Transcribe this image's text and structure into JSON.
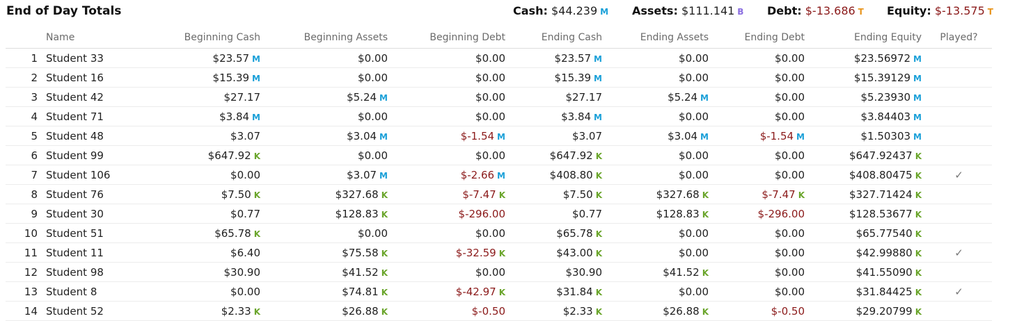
{
  "header": {
    "title": "End of Day Totals",
    "summary": [
      {
        "label": "Cash:",
        "value": "$44.239",
        "mark": "M",
        "negative": false
      },
      {
        "label": "Assets:",
        "value": "$111.141",
        "mark": "B",
        "negative": false
      },
      {
        "label": "Debt:",
        "value": "$-13.686",
        "mark": "T",
        "negative": true
      },
      {
        "label": "Equity:",
        "value": "$-13.575",
        "mark": "T",
        "negative": true
      }
    ]
  },
  "table": {
    "columns": [
      "",
      "Name",
      "Beginning Cash",
      "Beginning Assets",
      "Beginning Debt",
      "Ending Cash",
      "Ending Assets",
      "Ending Debt",
      "Ending Equity",
      "Played?"
    ],
    "check_glyph": "✓",
    "rows": [
      {
        "n": "1",
        "name": "Student 33",
        "bc": {
          "v": "$23.57",
          "m": "M"
        },
        "ba": {
          "v": "$0.00",
          "m": ""
        },
        "bd": {
          "v": "$0.00",
          "m": ""
        },
        "ec": {
          "v": "$23.57",
          "m": "M"
        },
        "ea": {
          "v": "$0.00",
          "m": ""
        },
        "ed": {
          "v": "$0.00",
          "m": ""
        },
        "eq": {
          "v": "$23.56972",
          "m": "M"
        },
        "played": false
      },
      {
        "n": "2",
        "name": "Student 16",
        "bc": {
          "v": "$15.39",
          "m": "M"
        },
        "ba": {
          "v": "$0.00",
          "m": ""
        },
        "bd": {
          "v": "$0.00",
          "m": ""
        },
        "ec": {
          "v": "$15.39",
          "m": "M"
        },
        "ea": {
          "v": "$0.00",
          "m": ""
        },
        "ed": {
          "v": "$0.00",
          "m": ""
        },
        "eq": {
          "v": "$15.39129",
          "m": "M"
        },
        "played": false
      },
      {
        "n": "3",
        "name": "Student 42",
        "bc": {
          "v": "$27.17",
          "m": ""
        },
        "ba": {
          "v": "$5.24",
          "m": "M"
        },
        "bd": {
          "v": "$0.00",
          "m": ""
        },
        "ec": {
          "v": "$27.17",
          "m": ""
        },
        "ea": {
          "v": "$5.24",
          "m": "M"
        },
        "ed": {
          "v": "$0.00",
          "m": ""
        },
        "eq": {
          "v": "$5.23930",
          "m": "M"
        },
        "played": false
      },
      {
        "n": "4",
        "name": "Student 71",
        "bc": {
          "v": "$3.84",
          "m": "M"
        },
        "ba": {
          "v": "$0.00",
          "m": ""
        },
        "bd": {
          "v": "$0.00",
          "m": ""
        },
        "ec": {
          "v": "$3.84",
          "m": "M"
        },
        "ea": {
          "v": "$0.00",
          "m": ""
        },
        "ed": {
          "v": "$0.00",
          "m": ""
        },
        "eq": {
          "v": "$3.84403",
          "m": "M"
        },
        "played": false
      },
      {
        "n": "5",
        "name": "Student 48",
        "bc": {
          "v": "$3.07",
          "m": ""
        },
        "ba": {
          "v": "$3.04",
          "m": "M"
        },
        "bd": {
          "v": "$-1.54",
          "m": "M"
        },
        "ec": {
          "v": "$3.07",
          "m": ""
        },
        "ea": {
          "v": "$3.04",
          "m": "M"
        },
        "ed": {
          "v": "$-1.54",
          "m": "M"
        },
        "eq": {
          "v": "$1.50303",
          "m": "M"
        },
        "played": false
      },
      {
        "n": "6",
        "name": "Student 99",
        "bc": {
          "v": "$647.92",
          "m": "K"
        },
        "ba": {
          "v": "$0.00",
          "m": ""
        },
        "bd": {
          "v": "$0.00",
          "m": ""
        },
        "ec": {
          "v": "$647.92",
          "m": "K"
        },
        "ea": {
          "v": "$0.00",
          "m": ""
        },
        "ed": {
          "v": "$0.00",
          "m": ""
        },
        "eq": {
          "v": "$647.92437",
          "m": "K"
        },
        "played": false
      },
      {
        "n": "7",
        "name": "Student 106",
        "bc": {
          "v": "$0.00",
          "m": ""
        },
        "ba": {
          "v": "$3.07",
          "m": "M"
        },
        "bd": {
          "v": "$-2.66",
          "m": "M"
        },
        "ec": {
          "v": "$408.80",
          "m": "K"
        },
        "ea": {
          "v": "$0.00",
          "m": ""
        },
        "ed": {
          "v": "$0.00",
          "m": ""
        },
        "eq": {
          "v": "$408.80475",
          "m": "K"
        },
        "played": true
      },
      {
        "n": "8",
        "name": "Student 76",
        "bc": {
          "v": "$7.50",
          "m": "K"
        },
        "ba": {
          "v": "$327.68",
          "m": "K"
        },
        "bd": {
          "v": "$-7.47",
          "m": "K"
        },
        "ec": {
          "v": "$7.50",
          "m": "K"
        },
        "ea": {
          "v": "$327.68",
          "m": "K"
        },
        "ed": {
          "v": "$-7.47",
          "m": "K"
        },
        "eq": {
          "v": "$327.71424",
          "m": "K"
        },
        "played": false
      },
      {
        "n": "9",
        "name": "Student 30",
        "bc": {
          "v": "$0.77",
          "m": ""
        },
        "ba": {
          "v": "$128.83",
          "m": "K"
        },
        "bd": {
          "v": "$-296.00",
          "m": ""
        },
        "ec": {
          "v": "$0.77",
          "m": ""
        },
        "ea": {
          "v": "$128.83",
          "m": "K"
        },
        "ed": {
          "v": "$-296.00",
          "m": ""
        },
        "eq": {
          "v": "$128.53677",
          "m": "K"
        },
        "played": false
      },
      {
        "n": "10",
        "name": "Student 51",
        "bc": {
          "v": "$65.78",
          "m": "K"
        },
        "ba": {
          "v": "$0.00",
          "m": ""
        },
        "bd": {
          "v": "$0.00",
          "m": ""
        },
        "ec": {
          "v": "$65.78",
          "m": "K"
        },
        "ea": {
          "v": "$0.00",
          "m": ""
        },
        "ed": {
          "v": "$0.00",
          "m": ""
        },
        "eq": {
          "v": "$65.77540",
          "m": "K"
        },
        "played": false
      },
      {
        "n": "11",
        "name": "Student 11",
        "bc": {
          "v": "$6.40",
          "m": ""
        },
        "ba": {
          "v": "$75.58",
          "m": "K"
        },
        "bd": {
          "v": "$-32.59",
          "m": "K"
        },
        "ec": {
          "v": "$43.00",
          "m": "K"
        },
        "ea": {
          "v": "$0.00",
          "m": ""
        },
        "ed": {
          "v": "$0.00",
          "m": ""
        },
        "eq": {
          "v": "$42.99880",
          "m": "K"
        },
        "played": true
      },
      {
        "n": "12",
        "name": "Student 98",
        "bc": {
          "v": "$30.90",
          "m": ""
        },
        "ba": {
          "v": "$41.52",
          "m": "K"
        },
        "bd": {
          "v": "$0.00",
          "m": ""
        },
        "ec": {
          "v": "$30.90",
          "m": ""
        },
        "ea": {
          "v": "$41.52",
          "m": "K"
        },
        "ed": {
          "v": "$0.00",
          "m": ""
        },
        "eq": {
          "v": "$41.55090",
          "m": "K"
        },
        "played": false
      },
      {
        "n": "13",
        "name": "Student 8",
        "bc": {
          "v": "$0.00",
          "m": ""
        },
        "ba": {
          "v": "$74.81",
          "m": "K"
        },
        "bd": {
          "v": "$-42.97",
          "m": "K"
        },
        "ec": {
          "v": "$31.84",
          "m": "K"
        },
        "ea": {
          "v": "$0.00",
          "m": ""
        },
        "ed": {
          "v": "$0.00",
          "m": ""
        },
        "eq": {
          "v": "$31.84425",
          "m": "K"
        },
        "played": true
      },
      {
        "n": "14",
        "name": "Student 52",
        "bc": {
          "v": "$2.33",
          "m": "K"
        },
        "ba": {
          "v": "$26.88",
          "m": "K"
        },
        "bd": {
          "v": "$-0.50",
          "m": ""
        },
        "ec": {
          "v": "$2.33",
          "m": "K"
        },
        "ea": {
          "v": "$26.88",
          "m": "K"
        },
        "ed": {
          "v": "$-0.50",
          "m": ""
        },
        "eq": {
          "v": "$29.20799",
          "m": "K"
        },
        "played": false
      }
    ]
  }
}
